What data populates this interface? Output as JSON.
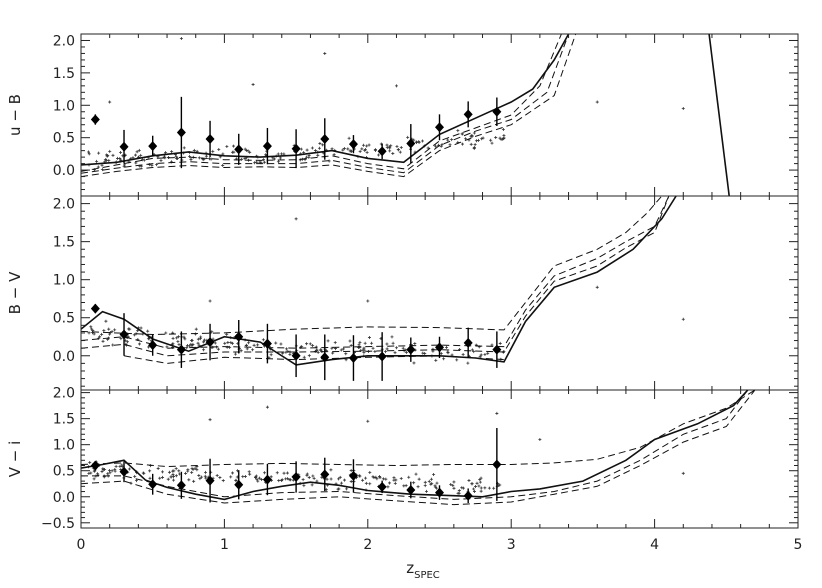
{
  "chart_data": {
    "type": "scatter",
    "xlabel": "z",
    "xlabel_sub": "SPEC",
    "xlim": [
      0,
      5
    ],
    "x_ticks": [
      0,
      1,
      2,
      3,
      4,
      5
    ],
    "x_tick_labels": [
      "0",
      "1",
      "2",
      "3",
      "4",
      "5"
    ],
    "grid": false,
    "panels": [
      {
        "ylabel": "u − B",
        "ylim": [
          -0.4,
          2.1
        ],
        "y_ticks": [
          0.0,
          0.5,
          1.0,
          1.5,
          2.0
        ],
        "y_tick_labels": [
          "0.0",
          "0.5",
          "1.0",
          "1.5",
          "2.0"
        ],
        "binned_means": [
          {
            "x": 0.1,
            "y": 0.78,
            "err": 0.08
          },
          {
            "x": 0.3,
            "y": 0.36,
            "err": 0.26
          },
          {
            "x": 0.5,
            "y": 0.37,
            "err": 0.16
          },
          {
            "x": 0.7,
            "y": 0.58,
            "err": 0.55
          },
          {
            "x": 0.9,
            "y": 0.48,
            "err": 0.28
          },
          {
            "x": 1.1,
            "y": 0.32,
            "err": 0.24
          },
          {
            "x": 1.3,
            "y": 0.37,
            "err": 0.28
          },
          {
            "x": 1.5,
            "y": 0.33,
            "err": 0.3
          },
          {
            "x": 1.7,
            "y": 0.48,
            "err": 0.32
          },
          {
            "x": 1.9,
            "y": 0.4,
            "err": 0.14
          },
          {
            "x": 2.1,
            "y": 0.29,
            "err": 0.12
          },
          {
            "x": 2.3,
            "y": 0.41,
            "err": 0.3
          },
          {
            "x": 2.5,
            "y": 0.66,
            "err": 0.2
          },
          {
            "x": 2.7,
            "y": 0.86,
            "err": 0.2
          },
          {
            "x": 2.9,
            "y": 0.9,
            "err": 0.22
          }
        ],
        "model_tracks": [
          {
            "style": "solid",
            "x": [
              0.0,
              0.25,
              0.5,
              0.75,
              1.0,
              1.25,
              1.5,
              1.75,
              2.0,
              2.25,
              2.5,
              2.75,
              3.0,
              3.15,
              3.3,
              3.4
            ],
            "y": [
              0.08,
              0.12,
              0.22,
              0.28,
              0.22,
              0.2,
              0.23,
              0.3,
              0.18,
              0.12,
              0.55,
              0.8,
              1.05,
              1.25,
              1.7,
              2.1
            ]
          },
          {
            "style": "dashed",
            "x": [
              0.0,
              0.25,
              0.5,
              0.75,
              1.0,
              1.25,
              1.5,
              1.75,
              2.0,
              2.25,
              2.5,
              2.75,
              3.0,
              3.2,
              3.35
            ],
            "y": [
              -0.02,
              0.08,
              0.18,
              0.2,
              0.16,
              0.15,
              0.16,
              0.22,
              0.1,
              0.02,
              0.45,
              0.65,
              0.85,
              1.3,
              2.1
            ]
          },
          {
            "style": "dashed",
            "x": [
              0.0,
              0.25,
              0.5,
              0.75,
              1.0,
              1.25,
              1.5,
              1.75,
              2.0,
              2.25,
              2.5,
              2.75,
              3.0,
              3.25,
              3.4
            ],
            "y": [
              -0.05,
              0.03,
              0.1,
              0.13,
              0.1,
              0.1,
              0.1,
              0.15,
              0.04,
              -0.04,
              0.38,
              0.6,
              0.78,
              1.2,
              2.1
            ]
          },
          {
            "style": "dashed",
            "x": [
              0.0,
              0.25,
              0.5,
              0.75,
              1.0,
              1.25,
              1.5,
              1.75,
              2.0,
              2.25,
              2.5,
              2.75,
              3.0,
              3.3,
              3.45
            ],
            "y": [
              -0.1,
              -0.02,
              0.04,
              0.07,
              0.04,
              0.05,
              0.04,
              0.08,
              -0.02,
              -0.1,
              0.3,
              0.52,
              0.7,
              1.15,
              2.1
            ]
          },
          {
            "style": "solid",
            "x": [
              4.38,
              4.52
            ],
            "y": [
              2.1,
              -0.4
            ]
          }
        ],
        "outliers": [
          [
            0.7,
            2.03
          ],
          [
            1.7,
            1.8
          ],
          [
            3.6,
            1.05
          ],
          [
            4.2,
            0.95
          ],
          [
            0.2,
            1.05
          ],
          [
            1.2,
            1.32
          ],
          [
            2.2,
            1.3
          ]
        ],
        "scatter_box": {
          "x": [
            0.05,
            2.95
          ],
          "y": [
            -0.05,
            1.1
          ],
          "n": 230,
          "trend": [
            0.15,
            0.25,
            0.5
          ],
          "spread": 0.22
        }
      },
      {
        "ylabel": "B − V",
        "ylim": [
          -0.45,
          2.1
        ],
        "y_ticks": [
          0.0,
          0.5,
          1.0,
          1.5,
          2.0
        ],
        "y_tick_labels": [
          "0.0",
          "0.5",
          "1.0",
          "1.5",
          "2.0"
        ],
        "binned_means": [
          {
            "x": 0.1,
            "y": 0.62,
            "err": 0.06
          },
          {
            "x": 0.3,
            "y": 0.28,
            "err": 0.28
          },
          {
            "x": 0.5,
            "y": 0.14,
            "err": 0.14
          },
          {
            "x": 0.7,
            "y": 0.08,
            "err": 0.24
          },
          {
            "x": 0.9,
            "y": 0.18,
            "err": 0.24
          },
          {
            "x": 1.1,
            "y": 0.25,
            "err": 0.22
          },
          {
            "x": 1.3,
            "y": 0.16,
            "err": 0.26
          },
          {
            "x": 1.5,
            "y": 0.0,
            "err": 0.28
          },
          {
            "x": 1.7,
            "y": -0.02,
            "err": 0.3
          },
          {
            "x": 1.9,
            "y": -0.03,
            "err": 0.3
          },
          {
            "x": 2.1,
            "y": -0.01,
            "err": 0.32
          },
          {
            "x": 2.3,
            "y": 0.08,
            "err": 0.16
          },
          {
            "x": 2.5,
            "y": 0.11,
            "err": 0.14
          },
          {
            "x": 2.7,
            "y": 0.17,
            "err": 0.2
          },
          {
            "x": 2.9,
            "y": 0.08,
            "err": 0.24
          }
        ],
        "model_tracks": [
          {
            "style": "solid",
            "x": [
              0.0,
              0.15,
              0.3,
              0.5,
              0.75,
              1.0,
              1.25,
              1.5,
              1.75,
              2.0,
              2.25,
              2.5,
              2.75,
              2.95,
              3.1,
              3.3,
              3.6,
              3.85,
              4.05,
              4.15
            ],
            "y": [
              0.35,
              0.58,
              0.48,
              0.22,
              0.06,
              0.25,
              0.18,
              -0.12,
              -0.05,
              0.0,
              0.0,
              0.0,
              -0.03,
              -0.08,
              0.45,
              0.9,
              1.1,
              1.4,
              1.8,
              2.1
            ]
          },
          {
            "style": "dashed",
            "x": [
              0.0,
              0.3,
              0.6,
              1.0,
              1.5,
              2.0,
              2.5,
              2.95,
              3.1,
              3.3,
              3.6,
              3.8,
              4.0,
              4.1
            ],
            "y": [
              0.2,
              0.25,
              0.1,
              0.12,
              0.1,
              0.12,
              0.14,
              0.12,
              0.6,
              1.05,
              1.28,
              1.5,
              1.7,
              2.1
            ]
          },
          {
            "style": "dashed",
            "x": [
              0.0,
              0.3,
              0.6,
              1.0,
              1.5,
              2.0,
              2.5,
              2.95,
              3.1,
              3.3,
              3.6,
              3.8,
              4.0,
              4.1
            ],
            "y": [
              0.1,
              0.15,
              0.0,
              0.05,
              0.05,
              0.06,
              0.08,
              0.05,
              0.52,
              0.98,
              1.18,
              1.42,
              1.62,
              2.1
            ]
          },
          {
            "style": "dashed",
            "x": [
              0.0,
              0.5,
              1.0,
              1.5,
              2.0,
              2.5,
              2.95,
              3.1,
              3.3,
              3.6,
              3.8,
              3.95,
              4.05
            ],
            "y": [
              0.32,
              0.28,
              0.3,
              0.35,
              0.38,
              0.37,
              0.34,
              0.7,
              1.18,
              1.4,
              1.62,
              1.88,
              2.1
            ]
          },
          {
            "style": "dashed",
            "x": [
              0.3,
              0.6,
              1.0,
              1.5,
              2.0,
              2.5,
              2.95
            ],
            "y": [
              0.0,
              -0.1,
              -0.02,
              -0.05,
              -0.02,
              0.0,
              -0.05
            ]
          }
        ],
        "outliers": [
          [
            1.5,
            1.8
          ],
          [
            2.0,
            0.72
          ],
          [
            0.9,
            0.72
          ],
          [
            3.6,
            0.9
          ],
          [
            4.2,
            0.48
          ]
        ],
        "scatter_box": {
          "x": [
            0.05,
            2.95
          ],
          "y": [
            -0.35,
            0.55
          ],
          "n": 230,
          "trend": [
            0.3,
            0.1,
            0.05
          ],
          "spread": 0.2
        }
      },
      {
        "ylabel": "V − i",
        "ylim": [
          -0.6,
          2.05
        ],
        "y_ticks": [
          -0.5,
          0.0,
          0.5,
          1.0,
          1.5,
          2.0
        ],
        "y_tick_labels": [
          "−0.5",
          "0.0",
          "0.5",
          "1.0",
          "1.5",
          "2.0"
        ],
        "binned_means": [
          {
            "x": 0.1,
            "y": 0.6,
            "err": 0.08
          },
          {
            "x": 0.3,
            "y": 0.48,
            "err": 0.2
          },
          {
            "x": 0.5,
            "y": 0.24,
            "err": 0.2
          },
          {
            "x": 0.7,
            "y": 0.22,
            "err": 0.26
          },
          {
            "x": 0.9,
            "y": 0.31,
            "err": 0.42
          },
          {
            "x": 1.1,
            "y": 0.23,
            "err": 0.28
          },
          {
            "x": 1.3,
            "y": 0.33,
            "err": 0.3
          },
          {
            "x": 1.5,
            "y": 0.38,
            "err": 0.3
          },
          {
            "x": 1.7,
            "y": 0.43,
            "err": 0.32
          },
          {
            "x": 1.9,
            "y": 0.4,
            "err": 0.32
          },
          {
            "x": 2.1,
            "y": 0.19,
            "err": 0.12
          },
          {
            "x": 2.3,
            "y": 0.13,
            "err": 0.16
          },
          {
            "x": 2.5,
            "y": 0.08,
            "err": 0.14
          },
          {
            "x": 2.7,
            "y": 0.02,
            "err": 0.14
          },
          {
            "x": 2.9,
            "y": 0.62,
            "err": 0.7
          }
        ],
        "model_tracks": [
          {
            "style": "solid",
            "x": [
              0.0,
              0.15,
              0.3,
              0.45,
              0.6,
              0.8,
              1.0,
              1.2,
              1.4,
              1.6,
              1.8,
              2.0,
              2.3,
              2.6,
              2.8,
              3.0,
              3.2,
              3.5,
              3.8,
              4.0,
              4.3,
              4.55,
              4.65
            ],
            "y": [
              0.55,
              0.62,
              0.7,
              0.32,
              0.18,
              0.05,
              -0.05,
              0.1,
              0.2,
              0.28,
              0.22,
              0.12,
              0.05,
              0.02,
              0.0,
              0.1,
              0.15,
              0.3,
              0.7,
              1.1,
              1.4,
              1.75,
              2.05
            ]
          },
          {
            "style": "dashed",
            "x": [
              0.0,
              0.3,
              0.6,
              1.0,
              1.4,
              1.8,
              2.2,
              2.6,
              3.0,
              3.3,
              3.6,
              3.9,
              4.2,
              4.5,
              4.7
            ],
            "y": [
              0.62,
              0.65,
              0.58,
              0.62,
              0.64,
              0.62,
              0.6,
              0.62,
              0.62,
              0.65,
              0.72,
              0.95,
              1.4,
              1.7,
              2.05
            ]
          },
          {
            "style": "dashed",
            "x": [
              0.0,
              0.3,
              0.6,
              1.0,
              1.4,
              1.8,
              2.2,
              2.6,
              3.0,
              3.3,
              3.6,
              3.9,
              4.2,
              4.5,
              4.65
            ],
            "y": [
              0.4,
              0.4,
              0.2,
              0.0,
              0.08,
              0.1,
              0.02,
              -0.05,
              0.0,
              0.1,
              0.3,
              0.7,
              1.2,
              1.5,
              2.05
            ]
          },
          {
            "style": "dashed",
            "x": [
              0.0,
              0.3,
              0.6,
              1.0,
              1.4,
              1.8,
              2.2,
              2.6,
              3.0,
              3.3,
              3.6,
              3.9,
              4.2,
              4.5,
              4.7
            ],
            "y": [
              0.25,
              0.3,
              0.05,
              -0.12,
              -0.05,
              0.0,
              -0.08,
              -0.15,
              -0.1,
              0.05,
              0.2,
              0.6,
              1.05,
              1.35,
              2.05
            ]
          }
        ],
        "outliers": [
          [
            1.3,
            1.72
          ],
          [
            2.0,
            1.45
          ],
          [
            0.9,
            1.48
          ],
          [
            3.2,
            1.1
          ],
          [
            4.2,
            0.45
          ],
          [
            2.9,
            1.6
          ]
        ],
        "scatter_box": {
          "x": [
            0.05,
            2.95
          ],
          "y": [
            -0.25,
            0.9
          ],
          "n": 230,
          "trend": [
            0.5,
            0.35,
            0.2
          ],
          "spread": 0.25
        }
      }
    ]
  }
}
